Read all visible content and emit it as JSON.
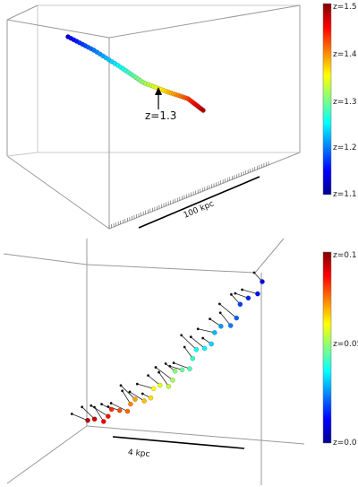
{
  "top_panel": {
    "annotation": "z=1.3",
    "scale_label": "100 kpc",
    "colorbar": {
      "labels": [
        "z=1.5",
        "z=1.4",
        "z=1.3",
        "z=1.2",
        "z=1.1"
      ],
      "min": 1.1,
      "max": 1.5
    },
    "path_z_range": [
      1.1,
      1.5
    ]
  },
  "bottom_panel": {
    "scale_label": "4 kpc",
    "colorbar": {
      "labels": [
        "z=0.1",
        "z=0.05",
        "z=0.0"
      ],
      "min": 0.0,
      "max": 0.1
    },
    "path_z_range": [
      0.0,
      0.1
    ]
  },
  "colors": {
    "colormap": [
      "#00008f",
      "#0000ff",
      "#0080ff",
      "#00ffff",
      "#80ff80",
      "#ffff00",
      "#ff8000",
      "#ff0000",
      "#800000"
    ],
    "box_edge": "#9a9a9a",
    "scale_bar": "#000000"
  }
}
